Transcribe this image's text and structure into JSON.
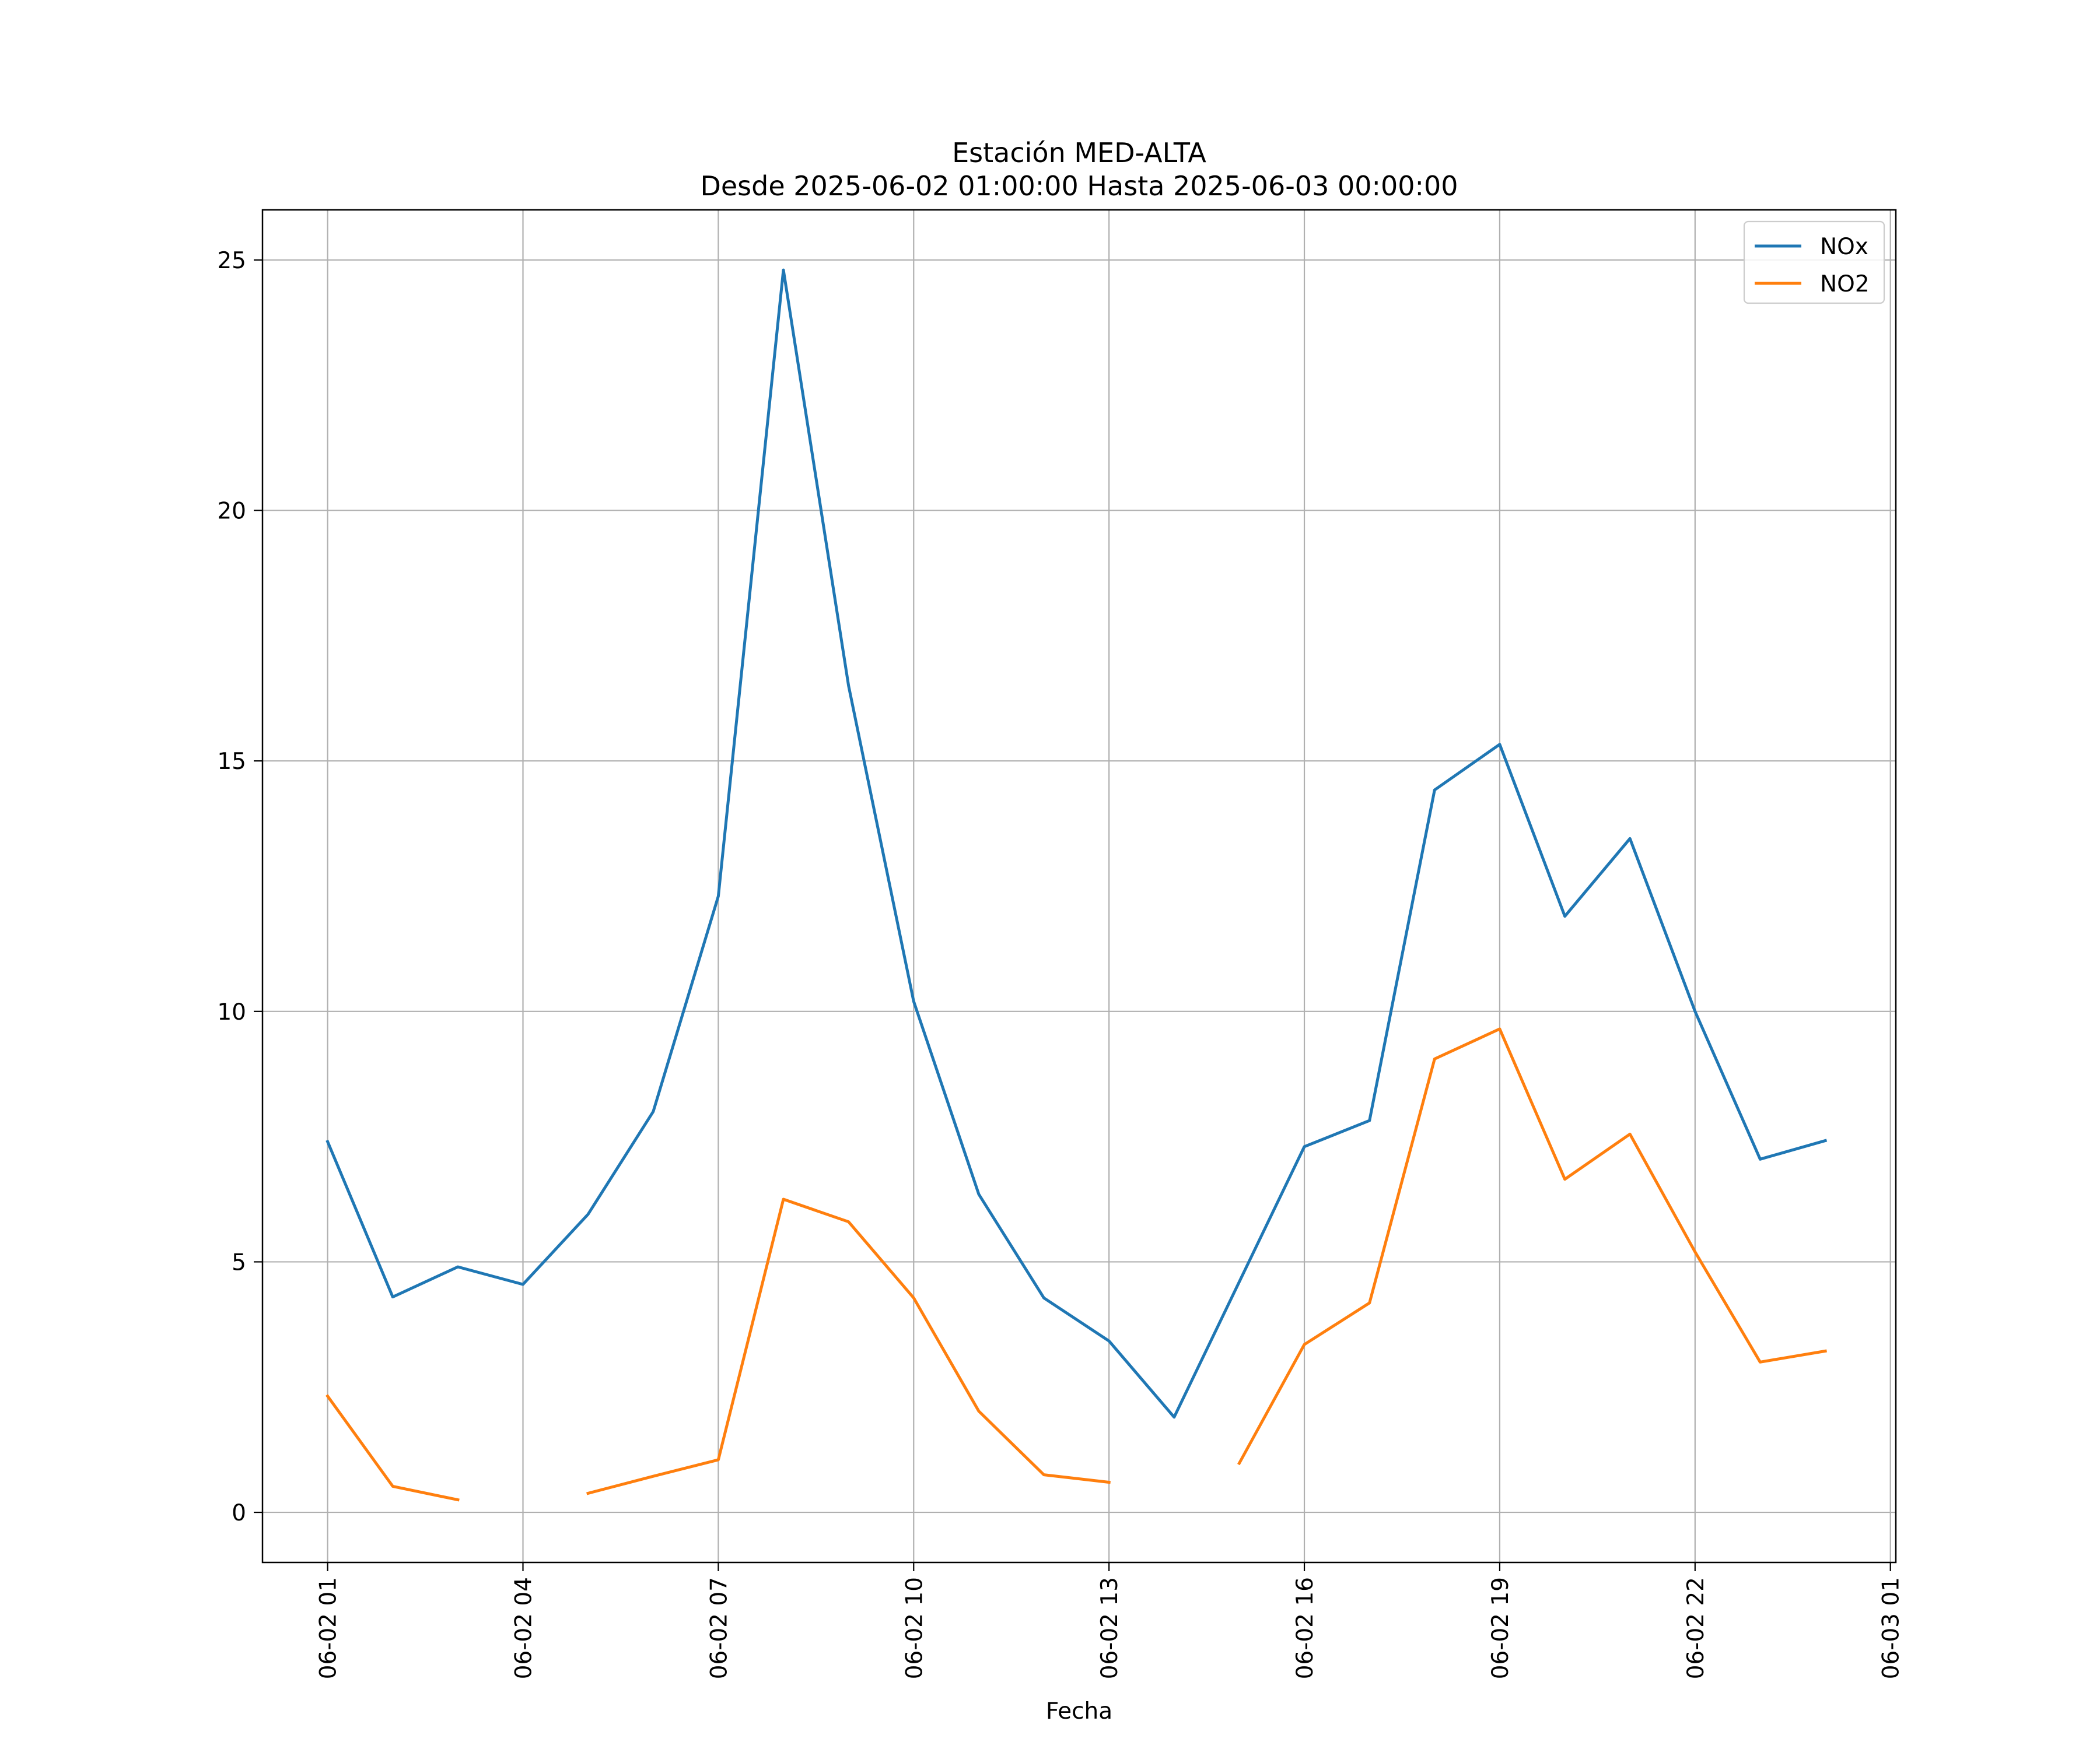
{
  "chart_data": {
    "type": "line",
    "title": "Estación MED-ALTA",
    "subtitle": "Desde 2025-06-02 01:00:00 Hasta 2025-06-03 00:00:00",
    "xlabel": "Fecha",
    "ylabel": "",
    "x": [
      "2025-06-02 01:00",
      "2025-06-02 02:00",
      "2025-06-02 03:00",
      "2025-06-02 04:00",
      "2025-06-02 05:00",
      "2025-06-02 06:00",
      "2025-06-02 07:00",
      "2025-06-02 08:00",
      "2025-06-02 09:00",
      "2025-06-02 10:00",
      "2025-06-02 11:00",
      "2025-06-02 12:00",
      "2025-06-02 13:00",
      "2025-06-02 14:00",
      "2025-06-02 15:00",
      "2025-06-02 16:00",
      "2025-06-02 17:00",
      "2025-06-02 18:00",
      "2025-06-02 19:00",
      "2025-06-02 20:00",
      "2025-06-02 21:00",
      "2025-06-02 22:00",
      "2025-06-02 23:00",
      "2025-06-03 00:00"
    ],
    "xlim": [
      "2025-06-02 00:00",
      "2025-06-03 01:05"
    ],
    "xticks": [
      {
        "value": "2025-06-02 01:00",
        "label": "06-02 01"
      },
      {
        "value": "2025-06-02 04:00",
        "label": "06-02 04"
      },
      {
        "value": "2025-06-02 07:00",
        "label": "06-02 07"
      },
      {
        "value": "2025-06-02 10:00",
        "label": "06-02 10"
      },
      {
        "value": "2025-06-02 13:00",
        "label": "06-02 13"
      },
      {
        "value": "2025-06-02 16:00",
        "label": "06-02 16"
      },
      {
        "value": "2025-06-02 19:00",
        "label": "06-02 19"
      },
      {
        "value": "2025-06-02 22:00",
        "label": "06-02 22"
      },
      {
        "value": "2025-06-03 01:00",
        "label": "06-03 01"
      }
    ],
    "ylim": [
      -1,
      26
    ],
    "yticks": [
      0,
      5,
      10,
      15,
      20,
      25
    ],
    "grid": true,
    "legend_position": "top-right",
    "series": [
      {
        "name": "NOx",
        "color": "#1f77b4",
        "values": [
          7.4,
          4.3,
          4.9,
          4.55,
          5.95,
          8.0,
          12.3,
          24.8,
          16.5,
          10.2,
          6.35,
          4.28,
          3.42,
          1.9,
          4.6,
          7.3,
          7.82,
          14.42,
          15.33,
          11.9,
          13.45,
          10.0,
          7.05,
          7.42
        ]
      },
      {
        "name": "NO2",
        "color": "#ff7f0e",
        "values": [
          2.32,
          0.52,
          0.25,
          null,
          0.38,
          0.72,
          1.05,
          6.25,
          5.8,
          4.28,
          2.02,
          0.75,
          0.6,
          null,
          0.98,
          3.35,
          4.18,
          9.05,
          9.65,
          6.65,
          7.55,
          5.2,
          3.0,
          3.22
        ]
      }
    ]
  }
}
